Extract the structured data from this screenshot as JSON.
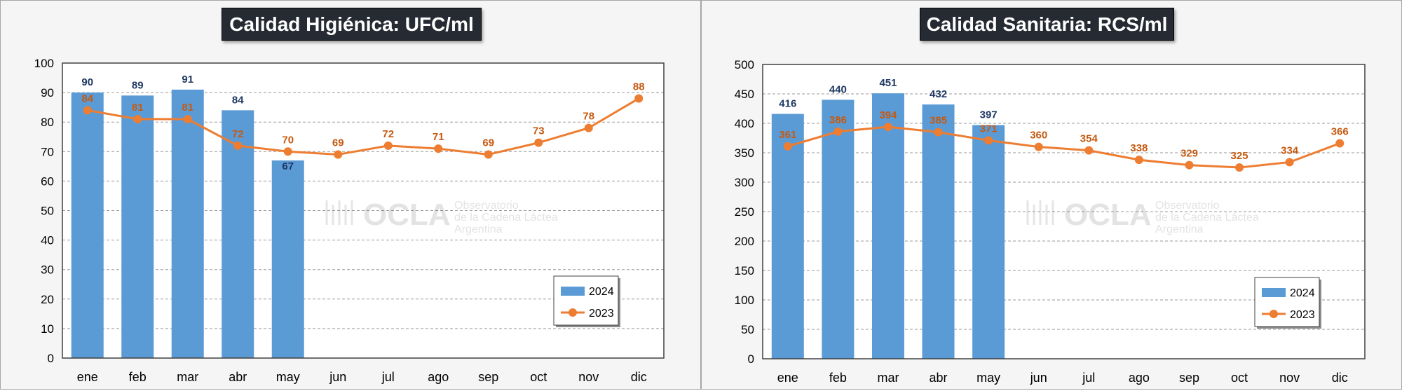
{
  "colors": {
    "bar_2024": "#5b9bd5",
    "line_2023": "#ed7d31",
    "label_2024": "#1f3864",
    "label_2023": "#c55a11",
    "title_bg": "#262b33"
  },
  "watermark": {
    "logo": "OCLA",
    "line1": "Observatorio",
    "line2": "de la Cadena Láctea",
    "line3": "Argentina"
  },
  "chart_data": [
    {
      "type": "bar",
      "title": "Calidad Higiénica: UFC/ml",
      "categories": [
        "ene",
        "feb",
        "mar",
        "abr",
        "may",
        "jun",
        "jul",
        "ago",
        "sep",
        "oct",
        "nov",
        "dic"
      ],
      "ylim": [
        0,
        100
      ],
      "yticks": [
        0,
        10,
        20,
        30,
        40,
        50,
        60,
        70,
        80,
        90,
        100
      ],
      "grid": true,
      "legend_position": "bottom-right",
      "series": [
        {
          "name": "2024",
          "type": "bar",
          "values": [
            90,
            89,
            91,
            84,
            67,
            null,
            null,
            null,
            null,
            null,
            null,
            null
          ]
        },
        {
          "name": "2023",
          "type": "line",
          "values": [
            84,
            81,
            81,
            72,
            70,
            69,
            72,
            71,
            69,
            73,
            78,
            88
          ]
        }
      ]
    },
    {
      "type": "bar",
      "title": "Calidad Sanitaria: RCS/ml",
      "categories": [
        "ene",
        "feb",
        "mar",
        "abr",
        "may",
        "jun",
        "jul",
        "ago",
        "sep",
        "oct",
        "nov",
        "dic"
      ],
      "ylim": [
        0,
        500
      ],
      "yticks": [
        0,
        50,
        100,
        150,
        200,
        250,
        300,
        350,
        400,
        450,
        500
      ],
      "grid": true,
      "legend_position": "bottom-right",
      "series": [
        {
          "name": "2024",
          "type": "bar",
          "values": [
            416,
            440,
            451,
            432,
            397,
            null,
            null,
            null,
            null,
            null,
            null,
            null
          ]
        },
        {
          "name": "2023",
          "type": "line",
          "values": [
            361,
            386,
            394,
            385,
            371,
            360,
            354,
            338,
            329,
            325,
            334,
            366
          ]
        }
      ]
    }
  ]
}
